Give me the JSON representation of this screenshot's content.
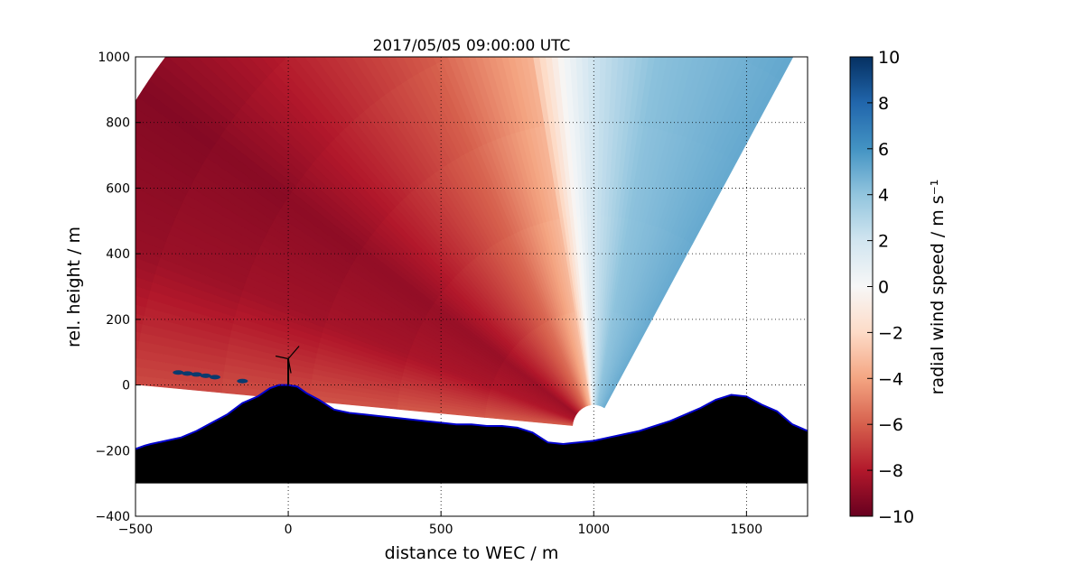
{
  "chart_data": {
    "type": "heatmap",
    "subtype": "rhi-scan-polar-sector",
    "title": "2017/05/05 09:00:00 UTC",
    "xlabel": "distance to WEC / m",
    "ylabel": "rel. height / m",
    "xlim": [
      -500,
      1700
    ],
    "ylim": [
      -400,
      1000
    ],
    "xticks": [
      -500,
      0,
      500,
      1000,
      1500
    ],
    "xtick_labels": [
      "−500",
      "0",
      "500",
      "1000",
      "1500"
    ],
    "yticks": [
      -400,
      -200,
      0,
      200,
      400,
      600,
      800,
      1000
    ],
    "ytick_labels": [
      "−400",
      "−200",
      "0",
      "200",
      "400",
      "600",
      "800",
      "1000"
    ],
    "grid": true,
    "grid_style": "dotted",
    "colorscale": "RdBu",
    "scan_origin": [
      1000,
      -130
    ],
    "scan_range_m": [
      70,
      1800
    ],
    "scan_azimuth_deg": [
      60,
      175
    ],
    "field_model": {
      "description_values_in_m_per_s": "radial wind speed vs angle from scan origin",
      "angle_deg": [
        60,
        80,
        90,
        95,
        100,
        115,
        130,
        145,
        160,
        175
      ],
      "speed": [
        5,
        4,
        2,
        0,
        -3,
        -5.5,
        -7,
        -8.5,
        -8,
        -6
      ]
    },
    "terrain_profile": {
      "x": [
        -500,
        -470,
        -450,
        -400,
        -350,
        -300,
        -250,
        -200,
        -150,
        -100,
        -60,
        -30,
        0,
        30,
        60,
        100,
        150,
        200,
        250,
        300,
        350,
        400,
        450,
        500,
        550,
        600,
        650,
        700,
        750,
        800,
        850,
        900,
        950,
        1000,
        1050,
        1100,
        1150,
        1200,
        1250,
        1300,
        1350,
        1400,
        1450,
        1500,
        1550,
        1600,
        1650,
        1700
      ],
      "y": [
        -195,
        -185,
        -180,
        -170,
        -160,
        -140,
        -115,
        -90,
        -55,
        -35,
        -10,
        0,
        0,
        -5,
        -25,
        -45,
        -75,
        -85,
        -90,
        -95,
        -100,
        -105,
        -110,
        -115,
        -120,
        -120,
        -125,
        -125,
        -130,
        -145,
        -175,
        -180,
        -175,
        -170,
        -160,
        -150,
        -140,
        -125,
        -110,
        -90,
        -70,
        -45,
        -30,
        -35,
        -60,
        -80,
        -120,
        -140
      ],
      "base": -300,
      "fill": "#000000",
      "outline": "#0000cc"
    },
    "turbine": {
      "x": 0,
      "hub_height": 80
    },
    "colorbar": {
      "label": "radial wind speed / m s⁻¹",
      "min": -10,
      "max": 10,
      "ticks": [
        10,
        8,
        6,
        4,
        2,
        0,
        -2,
        -4,
        -6,
        -8,
        -10
      ],
      "tick_labels": [
        "10",
        "8",
        "6",
        "4",
        "2",
        "0",
        "−2",
        "−4",
        "−6",
        "−8",
        "−10"
      ],
      "stops": [
        "#67001f",
        "#b2182b",
        "#d6604d",
        "#f4a582",
        "#fddbc7",
        "#f7f7f7",
        "#d1e5f0",
        "#92c5de",
        "#4393c3",
        "#2166ac",
        "#053061"
      ]
    }
  }
}
